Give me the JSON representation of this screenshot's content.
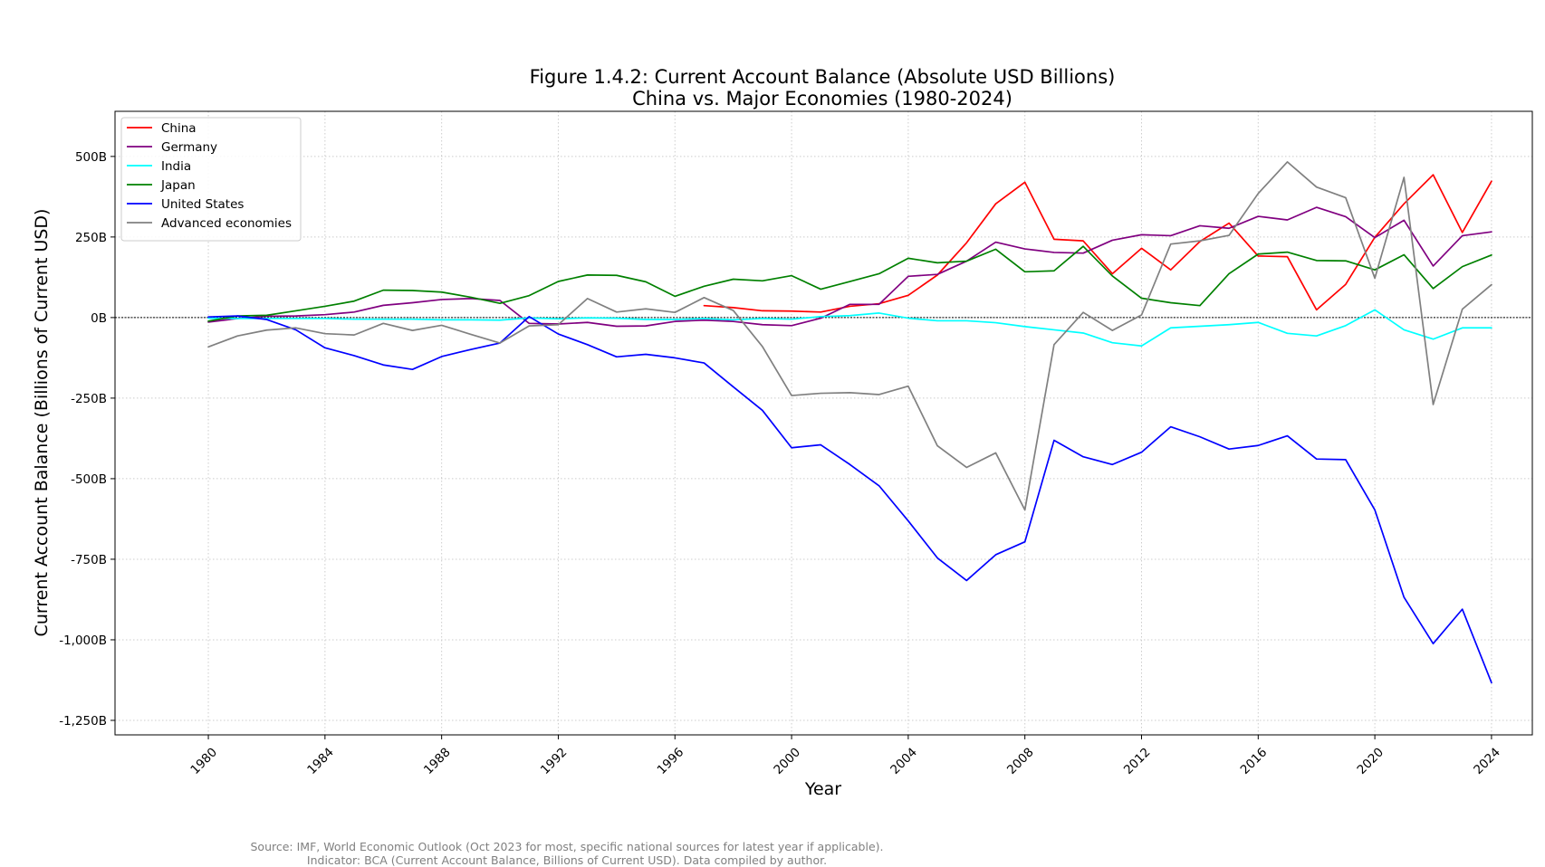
{
  "chart_data": {
    "type": "line",
    "title_line1": "Figure 1.4.2: Current Account Balance (Absolute USD Billions)",
    "title_line2": "China vs. Major Economies (1980-2024)",
    "xlabel": "Year",
    "ylabel": "Current Account Balance (Billions of Current USD)",
    "xlim": [
      1976.8,
      2025.4
    ],
    "ylim": [
      -1295,
      640
    ],
    "xticks": [
      1980,
      1984,
      1988,
      1992,
      1996,
      2000,
      2004,
      2008,
      2012,
      2016,
      2020,
      2024
    ],
    "yticks": [
      500,
      250,
      0,
      -250,
      -500,
      -750,
      -1000,
      -1250
    ],
    "ytick_labels": [
      "500B",
      "250B",
      "0B",
      "-250B",
      "-500B",
      "-750B",
      "-1,000B",
      "-1,250B"
    ],
    "grid": true,
    "grid_style": "dotted",
    "zero_line": true,
    "legend_position": "upper-left",
    "source_line1": "Source: IMF, World Economic Outlook (Oct 2023 for most, specific national sources for latest year if applicable).",
    "source_line2": "Indicator: BCA (Current Account Balance, Billions of Current USD). Data compiled by author.",
    "series": [
      {
        "name": "China",
        "color": "#ff0000",
        "x": [
          1997,
          1998,
          1999,
          2000,
          2001,
          2002,
          2003,
          2004,
          2005,
          2006,
          2007,
          2008,
          2009,
          2010,
          2011,
          2012,
          2013,
          2014,
          2015,
          2016,
          2017,
          2018,
          2019,
          2020,
          2021,
          2022,
          2023,
          2024
        ],
        "values": [
          37,
          31,
          21,
          20,
          17,
          35,
          43,
          69,
          132,
          232,
          353,
          420,
          243,
          238,
          136,
          215,
          148,
          236,
          293,
          191,
          189,
          24,
          103,
          249,
          353,
          443,
          264,
          423
        ]
      },
      {
        "name": "Germany",
        "color": "#800080",
        "x": [
          1980,
          1981,
          1982,
          1983,
          1984,
          1985,
          1986,
          1987,
          1988,
          1989,
          1990,
          1991,
          1992,
          1993,
          1994,
          1995,
          1996,
          1997,
          1998,
          1999,
          2000,
          2001,
          2002,
          2003,
          2004,
          2005,
          2006,
          2007,
          2008,
          2009,
          2010,
          2011,
          2012,
          2013,
          2014,
          2015,
          2016,
          2017,
          2018,
          2019,
          2020,
          2021,
          2022,
          2023,
          2024
        ],
        "values": [
          -14,
          -3,
          4,
          5,
          9,
          17,
          38,
          46,
          56,
          59,
          53,
          -18,
          -20,
          -15,
          -27,
          -26,
          -12,
          -8,
          -12,
          -22,
          -25,
          -2,
          41,
          41,
          128,
          134,
          175,
          234,
          213,
          202,
          200,
          240,
          257,
          254,
          285,
          277,
          314,
          303,
          342,
          313,
          248,
          302,
          160,
          254,
          266
        ]
      },
      {
        "name": "India",
        "color": "#00ffff",
        "x": [
          1980,
          1981,
          1982,
          1983,
          1984,
          1985,
          1986,
          1987,
          1988,
          1989,
          1990,
          1991,
          1992,
          1993,
          1994,
          1995,
          1996,
          1997,
          1998,
          1999,
          2000,
          2001,
          2002,
          2003,
          2004,
          2005,
          2006,
          2007,
          2008,
          2009,
          2010,
          2011,
          2012,
          2013,
          2014,
          2015,
          2016,
          2017,
          2018,
          2019,
          2020,
          2021,
          2022,
          2023,
          2024
        ],
        "values": [
          -2,
          -3,
          -3,
          -3,
          -3,
          -5,
          -5,
          -5,
          -7,
          -7,
          -8,
          -1,
          -4,
          -1,
          -2,
          -6,
          -6,
          -3,
          -7,
          -3,
          -5,
          3,
          6,
          14,
          -2,
          -10,
          -10,
          -16,
          -28,
          -38,
          -48,
          -78,
          -88,
          -32,
          -27,
          -22,
          -15,
          -49,
          -57,
          -25,
          24,
          -38,
          -67,
          -32,
          -32
        ]
      },
      {
        "name": "Japan",
        "color": "#008000",
        "x": [
          1980,
          1981,
          1982,
          1983,
          1984,
          1985,
          1986,
          1987,
          1988,
          1989,
          1990,
          1991,
          1992,
          1993,
          1994,
          1995,
          1996,
          1997,
          1998,
          1999,
          2000,
          2001,
          2002,
          2003,
          2004,
          2005,
          2006,
          2007,
          2008,
          2009,
          2010,
          2011,
          2012,
          2013,
          2014,
          2015,
          2016,
          2017,
          2018,
          2019,
          2020,
          2021,
          2022,
          2023,
          2024
        ],
        "values": [
          -11,
          5,
          7,
          21,
          35,
          51,
          85,
          84,
          79,
          63,
          44,
          68,
          112,
          132,
          131,
          111,
          66,
          97,
          119,
          114,
          130,
          88,
          112,
          136,
          184,
          170,
          175,
          212,
          142,
          145,
          221,
          129,
          60,
          46,
          37,
          136,
          197,
          203,
          177,
          176,
          148,
          195,
          90,
          158,
          194
        ]
      },
      {
        "name": "United States",
        "color": "#0000ff",
        "x": [
          1980,
          1981,
          1982,
          1983,
          1984,
          1985,
          1986,
          1987,
          1988,
          1989,
          1990,
          1991,
          1992,
          1993,
          1994,
          1995,
          1996,
          1997,
          1998,
          1999,
          2000,
          2001,
          2002,
          2003,
          2004,
          2005,
          2006,
          2007,
          2008,
          2009,
          2010,
          2011,
          2012,
          2013,
          2014,
          2015,
          2016,
          2017,
          2018,
          2019,
          2020,
          2021,
          2022,
          2023,
          2024
        ],
        "values": [
          2,
          5,
          -6,
          -38,
          -94,
          -118,
          -147,
          -161,
          -121,
          -99,
          -79,
          3,
          -51,
          -84,
          -122,
          -114,
          -125,
          -141,
          -215,
          -288,
          -404,
          -395,
          -456,
          -522,
          -631,
          -746,
          -816,
          -736,
          -696,
          -381,
          -432,
          -456,
          -418,
          -339,
          -370,
          -408,
          -397,
          -367,
          -439,
          -441,
          -597,
          -868,
          -1012,
          -905,
          -1133
        ]
      },
      {
        "name": "Advanced economies",
        "color": "#808080",
        "x": [
          1980,
          1981,
          1982,
          1983,
          1984,
          1985,
          1986,
          1987,
          1988,
          1989,
          1990,
          1991,
          1992,
          1993,
          1994,
          1995,
          1996,
          1997,
          1998,
          1999,
          2000,
          2001,
          2002,
          2003,
          2004,
          2005,
          2006,
          2007,
          2008,
          2009,
          2010,
          2011,
          2012,
          2013,
          2014,
          2015,
          2016,
          2017,
          2018,
          2019,
          2020,
          2021,
          2022,
          2023,
          2024
        ],
        "values": [
          -91,
          -57,
          -39,
          -32,
          -50,
          -54,
          -18,
          -40,
          -24,
          -52,
          -79,
          -26,
          -22,
          59,
          17,
          27,
          16,
          62,
          22,
          -90,
          -242,
          -235,
          -233,
          -239,
          -213,
          -398,
          -465,
          -420,
          -597,
          -84,
          16,
          -40,
          8,
          228,
          238,
          255,
          385,
          483,
          405,
          372,
          122,
          435,
          -270,
          26,
          102
        ]
      }
    ]
  }
}
